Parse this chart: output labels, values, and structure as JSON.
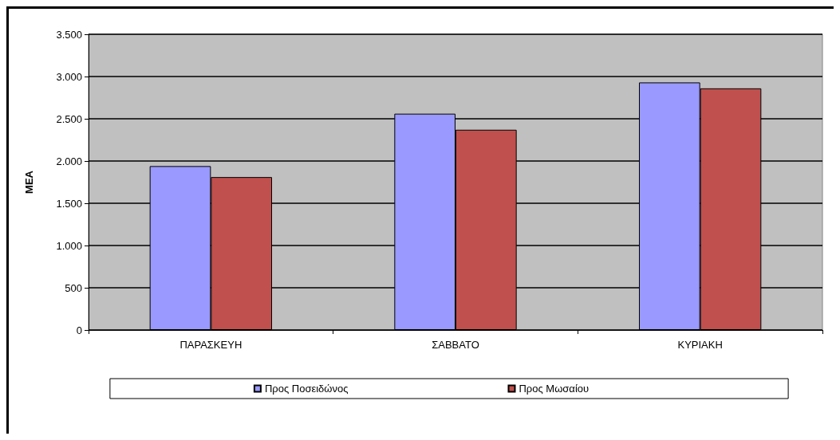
{
  "chart_data": {
    "type": "bar",
    "ylabel": "ΜΕΑ",
    "categories": [
      "ΠΑΡΑΣΚΕΥΗ",
      "ΣΑΒΒΑΤΟ",
      "ΚΥΡΙΑΚΗ"
    ],
    "series": [
      {
        "name": "Προς Ποσειδώνος",
        "color": "#9999ff",
        "values": [
          1940,
          2560,
          2930
        ]
      },
      {
        "name": "Προς Μωσαίου",
        "color": "#c0504d",
        "values": [
          1810,
          2370,
          2860
        ]
      }
    ],
    "ylim": [
      0,
      3500
    ],
    "yticks": [
      0,
      500,
      {
        "value": 1000,
        "label": "1.000"
      },
      {
        "value": 1500,
        "label": "1.500"
      },
      {
        "value": 2000,
        "label": "2.000"
      },
      {
        "value": 2500,
        "label": "2.500"
      },
      {
        "value": 3000,
        "label": "3.000"
      },
      {
        "value": 3500,
        "label": "3.500"
      }
    ],
    "grid": "y",
    "legend": "bottom"
  }
}
